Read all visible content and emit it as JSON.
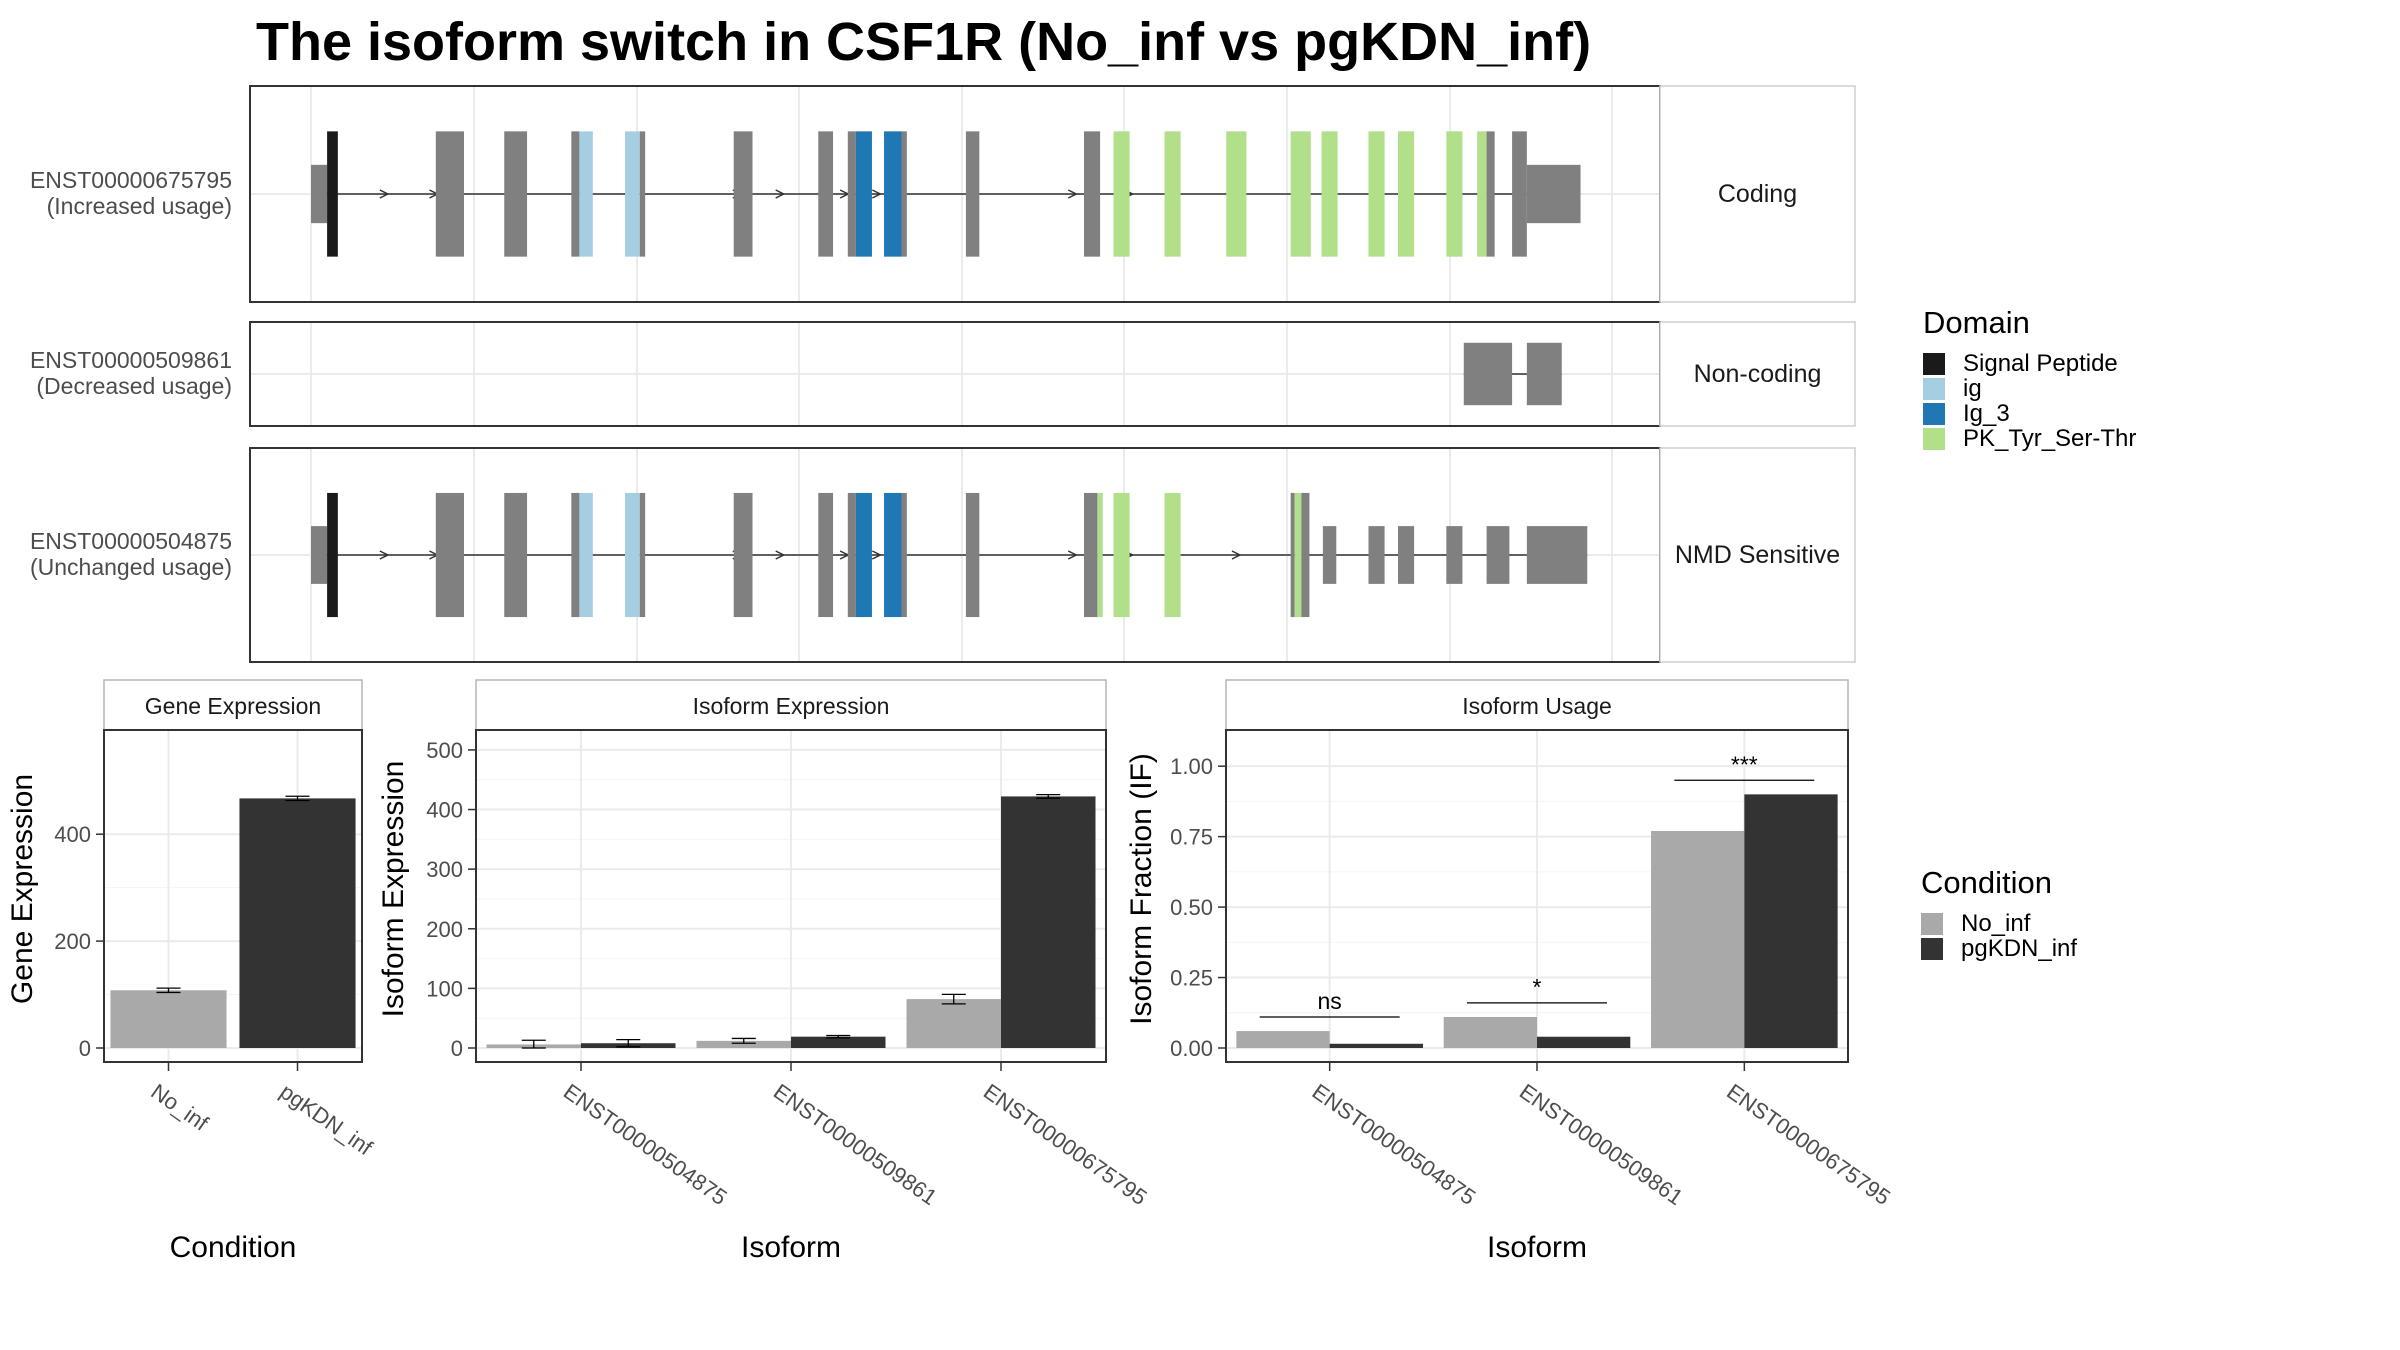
{
  "title": "The isoform switch in CSF1R (No_inf vs pgKDN_inf)",
  "colors": {
    "exon": "#808080",
    "signal_peptide": "#1a1a1a",
    "ig": "#a6cee3",
    "ig_3": "#1f78b4",
    "pk_tyr_ser_thr": "#b2df8a",
    "no_inf": "#a9a9a9",
    "pgkdn_inf": "#333333"
  },
  "transcript_tracks": [
    {
      "id": "ENST00000675795",
      "usage": "(Increased usage)",
      "category": "Coding",
      "exons": [
        [
          0.0,
          0.012,
          "utr"
        ],
        [
          0.012,
          0.02,
          "Signal Peptide"
        ],
        [
          0.093,
          0.114,
          "cds"
        ],
        [
          0.144,
          0.161,
          "cds"
        ],
        [
          0.194,
          0.2,
          "cds"
        ],
        [
          0.2,
          0.21,
          "ig"
        ],
        [
          0.234,
          0.245,
          "ig"
        ],
        [
          0.245,
          0.249,
          "cds"
        ],
        [
          0.315,
          0.329,
          "cds"
        ],
        [
          0.378,
          0.389,
          "cds"
        ],
        [
          0.4,
          0.406,
          "cds"
        ],
        [
          0.406,
          0.418,
          "Ig_3"
        ],
        [
          0.427,
          0.44,
          "Ig_3"
        ],
        [
          0.44,
          0.444,
          "cds"
        ],
        [
          0.488,
          0.498,
          "cds"
        ],
        [
          0.576,
          0.588,
          "cds"
        ],
        [
          0.598,
          0.61,
          "PK_Tyr_Ser-Thr"
        ],
        [
          0.636,
          0.648,
          "PK_Tyr_Ser-Thr"
        ],
        [
          0.682,
          0.697,
          "PK_Tyr_Ser-Thr"
        ],
        [
          0.73,
          0.745,
          "PK_Tyr_Ser-Thr"
        ],
        [
          0.753,
          0.765,
          "PK_Tyr_Ser-Thr"
        ],
        [
          0.788,
          0.8,
          "PK_Tyr_Ser-Thr"
        ],
        [
          0.81,
          0.822,
          "PK_Tyr_Ser-Thr"
        ],
        [
          0.846,
          0.858,
          "PK_Tyr_Ser-Thr"
        ],
        [
          0.869,
          0.876,
          "PK_Tyr_Ser-Thr"
        ],
        [
          0.876,
          0.882,
          "cds"
        ],
        [
          0.895,
          0.906,
          "cds"
        ],
        [
          0.906,
          0.946,
          "utr"
        ]
      ],
      "arrows": [
        0.055,
        0.092,
        0.318,
        0.35,
        0.398,
        0.422,
        0.568,
        0.61
      ]
    },
    {
      "id": "ENST00000509861",
      "usage": "(Decreased usage)",
      "category": "Non-coding",
      "exons": [
        [
          0.859,
          0.895,
          "ncrna"
        ],
        [
          0.906,
          0.932,
          "ncrna"
        ]
      ],
      "arrows": []
    },
    {
      "id": "ENST00000504875",
      "usage": "(Unchanged usage)",
      "category": "NMD Sensitive",
      "exons": [
        [
          0.0,
          0.012,
          "utr"
        ],
        [
          0.012,
          0.02,
          "Signal Peptide"
        ],
        [
          0.093,
          0.114,
          "cds"
        ],
        [
          0.144,
          0.161,
          "cds"
        ],
        [
          0.194,
          0.2,
          "cds"
        ],
        [
          0.2,
          0.21,
          "ig"
        ],
        [
          0.234,
          0.245,
          "ig"
        ],
        [
          0.245,
          0.249,
          "cds"
        ],
        [
          0.315,
          0.329,
          "cds"
        ],
        [
          0.378,
          0.389,
          "cds"
        ],
        [
          0.4,
          0.406,
          "cds"
        ],
        [
          0.406,
          0.418,
          "Ig_3"
        ],
        [
          0.427,
          0.44,
          "Ig_3"
        ],
        [
          0.44,
          0.444,
          "cds"
        ],
        [
          0.488,
          0.498,
          "cds"
        ],
        [
          0.576,
          0.586,
          "cds"
        ],
        [
          0.586,
          0.59,
          "PK_Tyr_Ser-Thr"
        ],
        [
          0.598,
          0.61,
          "PK_Tyr_Ser-Thr"
        ],
        [
          0.636,
          0.648,
          "PK_Tyr_Ser-Thr"
        ],
        [
          0.73,
          0.733,
          "cds"
        ],
        [
          0.733,
          0.738,
          "PK_Tyr_Ser-Thr"
        ],
        [
          0.738,
          0.744,
          "cds"
        ],
        [
          0.754,
          0.764,
          "utr"
        ],
        [
          0.788,
          0.8,
          "utr"
        ],
        [
          0.81,
          0.822,
          "utr"
        ],
        [
          0.846,
          0.858,
          "utr"
        ],
        [
          0.876,
          0.893,
          "utr"
        ],
        [
          0.906,
          0.951,
          "utr"
        ]
      ],
      "arrows": [
        0.055,
        0.092,
        0.318,
        0.35,
        0.398,
        0.422,
        0.568,
        0.61,
        0.69
      ]
    }
  ],
  "domain_legend": {
    "title": "Domain",
    "items": [
      {
        "label": "Signal Peptide",
        "color": "#1a1a1a"
      },
      {
        "label": "ig",
        "color": "#a6cee3"
      },
      {
        "label": "Ig_3",
        "color": "#1f78b4"
      },
      {
        "label": "PK_Tyr_Ser-Thr",
        "color": "#b2df8a"
      }
    ]
  },
  "condition_legend": {
    "title": "Condition",
    "items": [
      {
        "label": "No_inf",
        "color": "#a9a9a9"
      },
      {
        "label": "pgKDN_inf",
        "color": "#333333"
      }
    ]
  },
  "chart_data": [
    {
      "type": "bar",
      "facet_title": "Gene Expression",
      "xlabel": "Condition",
      "ylabel": "Gene Expression",
      "categories": [
        "No_inf",
        "pgKDN_inf"
      ],
      "values": [
        108,
        467
      ],
      "errors": [
        4,
        4
      ],
      "ylim": [
        0,
        580
      ],
      "yticks": [
        0,
        200,
        400
      ],
      "colors": [
        "#a9a9a9",
        "#333333"
      ]
    },
    {
      "type": "bar",
      "facet_title": "Isoform Expression",
      "xlabel": "Isoform",
      "ylabel": "Isoform Expression",
      "categories": [
        "ENST00000504875",
        "ENST00000509861",
        "ENST00000675795"
      ],
      "series": [
        {
          "name": "No_inf",
          "values": [
            6,
            12,
            82
          ],
          "errors": [
            7,
            4,
            8
          ]
        },
        {
          "name": "pgKDN_inf",
          "values": [
            8,
            19,
            422
          ],
          "errors": [
            6,
            2,
            3
          ]
        }
      ],
      "ylim": [
        0,
        520
      ],
      "yticks": [
        0,
        100,
        200,
        300,
        400,
        500
      ]
    },
    {
      "type": "bar",
      "facet_title": "Isoform Usage",
      "xlabel": "Isoform",
      "ylabel": "Isoform Fraction (IF)",
      "categories": [
        "ENST00000504875",
        "ENST00000509861",
        "ENST00000675795"
      ],
      "series": [
        {
          "name": "No_inf",
          "values": [
            0.06,
            0.11,
            0.77
          ]
        },
        {
          "name": "pgKDN_inf",
          "values": [
            0.015,
            0.04,
            0.9
          ]
        }
      ],
      "significance": [
        "ns",
        "*",
        "***"
      ],
      "ylim": [
        0,
        1.1
      ],
      "yticks": [
        "0.00",
        "0.25",
        "0.50",
        "0.75",
        "1.00"
      ]
    }
  ]
}
